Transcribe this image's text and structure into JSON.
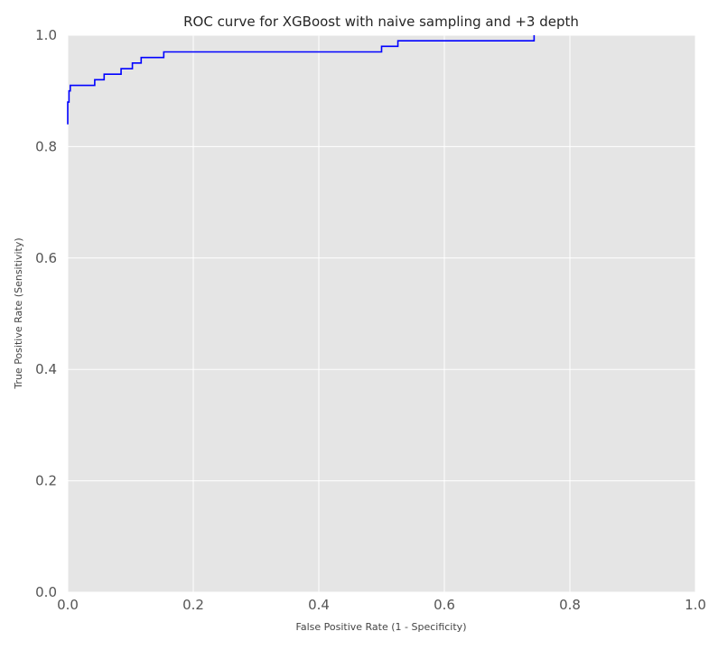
{
  "chart_data": {
    "type": "line",
    "title": "ROC curve for XGBoost with naive sampling and +3 depth",
    "xlabel": "False Positive Rate (1 - Specificity)",
    "ylabel": "True Positive Rate (Sensitivity)",
    "xlim": [
      0.0,
      1.0
    ],
    "ylim": [
      0.0,
      1.0
    ],
    "x_ticks": [
      "0.0",
      "0.2",
      "0.4",
      "0.6",
      "0.8",
      "1.0"
    ],
    "y_ticks": [
      "0.0",
      "0.2",
      "0.4",
      "0.6",
      "0.8",
      "1.0"
    ],
    "grid": true,
    "background_color": "#e5e5e5",
    "grid_color": "#ffffff",
    "series": [
      {
        "color": "#0000ff",
        "x": [
          0.0,
          0.0,
          0.002,
          0.002,
          0.004,
          0.004,
          0.006,
          0.006,
          0.043,
          0.043,
          0.058,
          0.058,
          0.085,
          0.085,
          0.103,
          0.103,
          0.117,
          0.117,
          0.153,
          0.153,
          0.5,
          0.5,
          0.526,
          0.526,
          0.743,
          0.743
        ],
        "y": [
          0.84,
          0.88,
          0.88,
          0.9,
          0.9,
          0.91,
          0.91,
          0.91,
          0.91,
          0.92,
          0.92,
          0.93,
          0.93,
          0.94,
          0.94,
          0.95,
          0.95,
          0.96,
          0.96,
          0.97,
          0.97,
          0.98,
          0.98,
          0.99,
          0.99,
          1.0
        ]
      }
    ]
  }
}
